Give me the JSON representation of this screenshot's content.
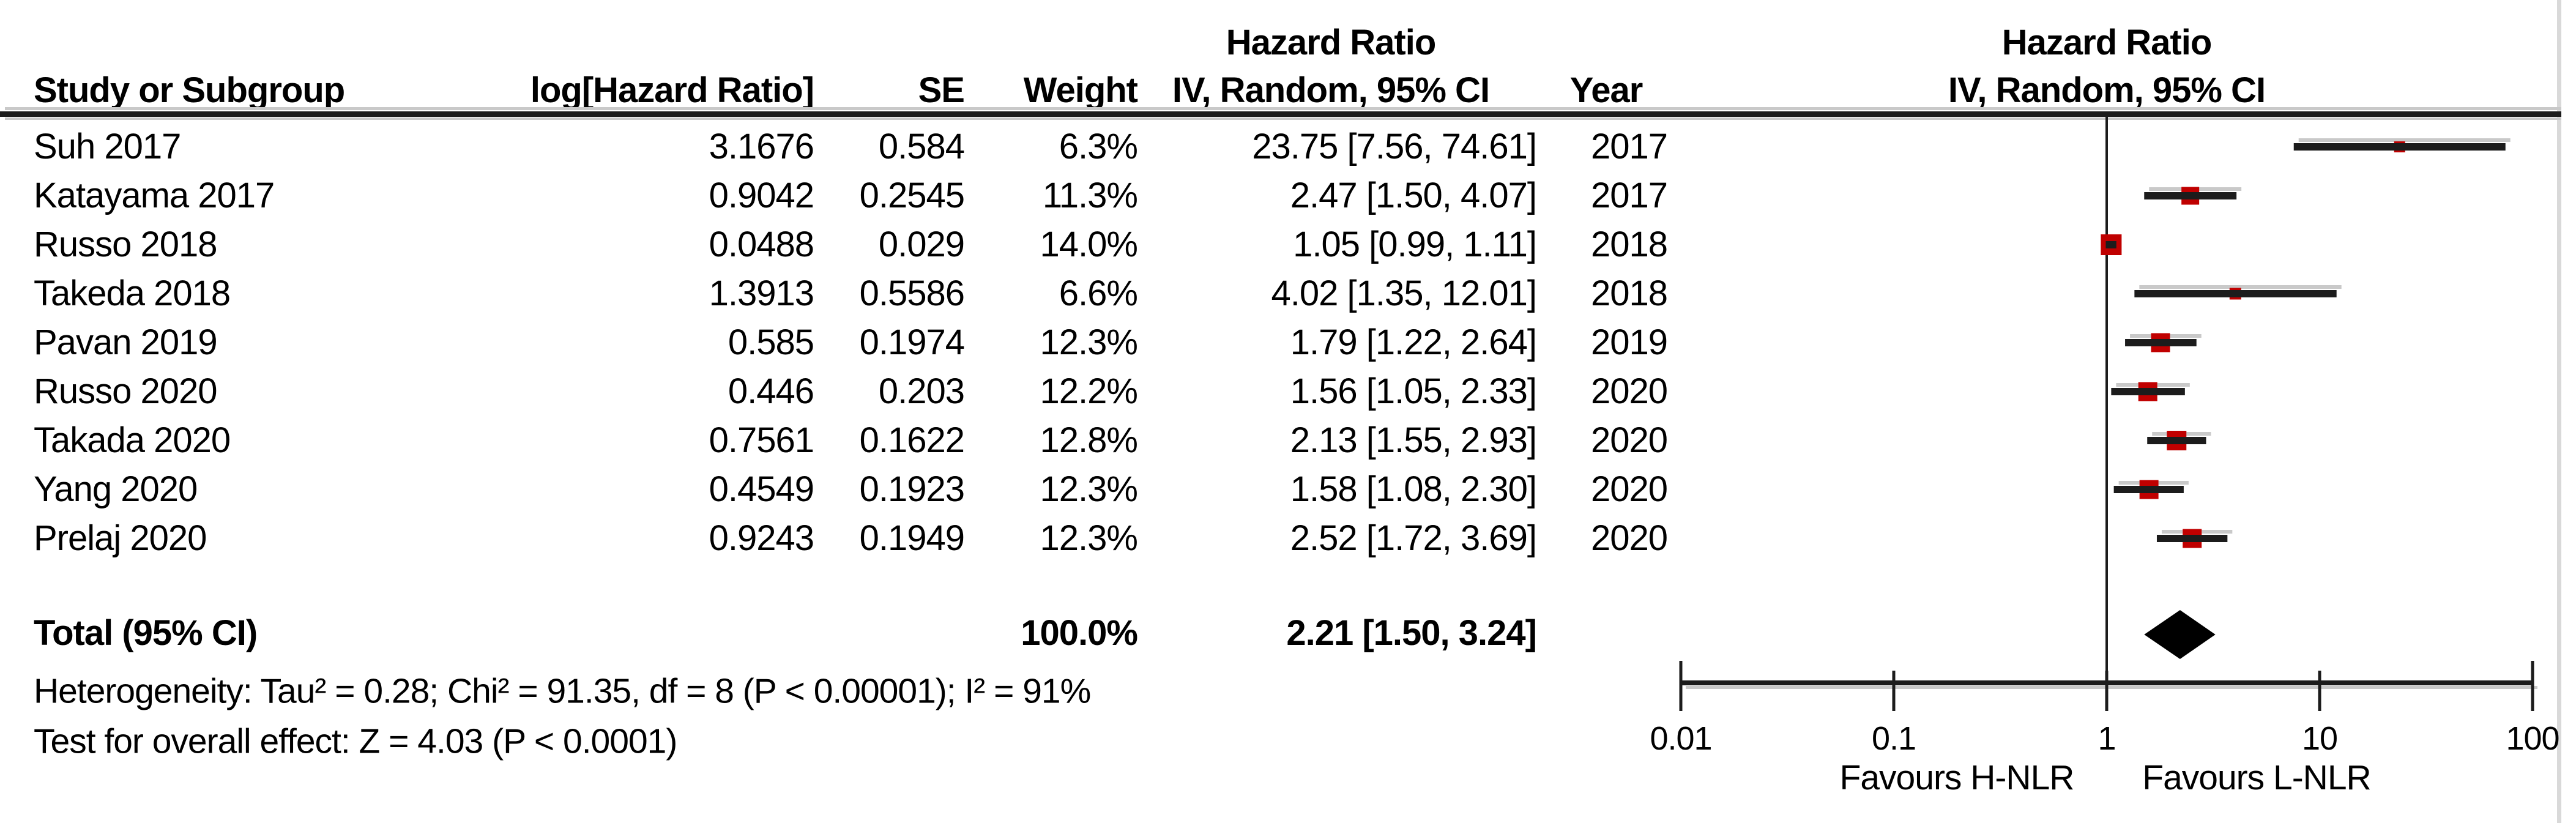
{
  "table": {
    "col_headers": {
      "study": "Study or Subgroup",
      "log_hr": "log[Hazard Ratio]",
      "se": "SE",
      "weight": "Weight",
      "effect_group": "Hazard Ratio",
      "effect": "IV, Random, 95% CI",
      "year": "Year"
    },
    "plot_col_headers": {
      "group": "Hazard Ratio",
      "effect": "IV, Random, 95% CI"
    },
    "total_row": {
      "label": "Total (95% CI)",
      "weight": "100.0%",
      "effect": "2.21 [1.50, 3.24]"
    },
    "footnotes": {
      "heterogeneity": "Heterogeneity: Tau² = 0.28; Chi² = 91.35, df = 8 (P < 0.00001); I² = 91%",
      "overall_effect": "Test for overall effect: Z = 4.03 (P < 0.0001)"
    }
  },
  "chart_data": {
    "type": "scatter",
    "subtype": "forest-plot",
    "title": "Hazard Ratio IV, Random, 95% CI",
    "x_scale": "log10",
    "x_range": [
      0.01,
      100
    ],
    "x_ticks": [
      0.01,
      0.1,
      1,
      10,
      100
    ],
    "x_tick_labels": [
      "0.01",
      "0.1",
      "1",
      "10",
      "100"
    ],
    "null_line_x": 1,
    "favours_left": "Favours H-NLR",
    "favours_right": "Favours L-NLR",
    "marker_color": "#c00000",
    "line_color": "#1c1c1c",
    "shadow_color": "#c9c9c9",
    "frame_color": "#d9d9d9",
    "studies": [
      {
        "name": "Suh 2017",
        "log_hr": "3.1676",
        "se": "0.584",
        "weight": "6.3%",
        "weight_pct": 6.3,
        "hr": 23.75,
        "ci_low": 7.56,
        "ci_high": 74.61,
        "effect": "23.75 [7.56, 74.61]",
        "year": "2017"
      },
      {
        "name": "Katayama 2017",
        "log_hr": "0.9042",
        "se": "0.2545",
        "weight": "11.3%",
        "weight_pct": 11.3,
        "hr": 2.47,
        "ci_low": 1.5,
        "ci_high": 4.07,
        "effect": "2.47 [1.50, 4.07]",
        "year": "2017"
      },
      {
        "name": "Russo 2018",
        "log_hr": "0.0488",
        "se": "0.029",
        "weight": "14.0%",
        "weight_pct": 14.0,
        "hr": 1.05,
        "ci_low": 0.99,
        "ci_high": 1.11,
        "effect": "1.05 [0.99, 1.11]",
        "year": "2018"
      },
      {
        "name": "Takeda 2018",
        "log_hr": "1.3913",
        "se": "0.5586",
        "weight": "6.6%",
        "weight_pct": 6.6,
        "hr": 4.02,
        "ci_low": 1.35,
        "ci_high": 12.01,
        "effect": "4.02 [1.35, 12.01]",
        "year": "2018"
      },
      {
        "name": "Pavan 2019",
        "log_hr": "0.585",
        "se": "0.1974",
        "weight": "12.3%",
        "weight_pct": 12.3,
        "hr": 1.79,
        "ci_low": 1.22,
        "ci_high": 2.64,
        "effect": "1.79 [1.22, 2.64]",
        "year": "2019"
      },
      {
        "name": "Russo 2020",
        "log_hr": "0.446",
        "se": "0.203",
        "weight": "12.2%",
        "weight_pct": 12.2,
        "hr": 1.56,
        "ci_low": 1.05,
        "ci_high": 2.33,
        "effect": "1.56 [1.05, 2.33]",
        "year": "2020"
      },
      {
        "name": "Takada 2020",
        "log_hr": "0.7561",
        "se": "0.1622",
        "weight": "12.8%",
        "weight_pct": 12.8,
        "hr": 2.13,
        "ci_low": 1.55,
        "ci_high": 2.93,
        "effect": "2.13 [1.55, 2.93]",
        "year": "2020"
      },
      {
        "name": "Yang 2020",
        "log_hr": "0.4549",
        "se": "0.1923",
        "weight": "12.3%",
        "weight_pct": 12.3,
        "hr": 1.58,
        "ci_low": 1.08,
        "ci_high": 2.3,
        "effect": "1.58 [1.08, 2.30]",
        "year": "2020"
      },
      {
        "name": "Prelaj 2020",
        "log_hr": "0.9243",
        "se": "0.1949",
        "weight": "12.3%",
        "weight_pct": 12.3,
        "hr": 2.52,
        "ci_low": 1.72,
        "ci_high": 3.69,
        "effect": "2.52 [1.72, 3.69]",
        "year": "2020"
      }
    ],
    "total": {
      "label": "Total (95% CI)",
      "hr": 2.21,
      "ci_low": 1.5,
      "ci_high": 3.24,
      "weight": "100.0%",
      "effect": "2.21 [1.50, 3.24]"
    }
  }
}
